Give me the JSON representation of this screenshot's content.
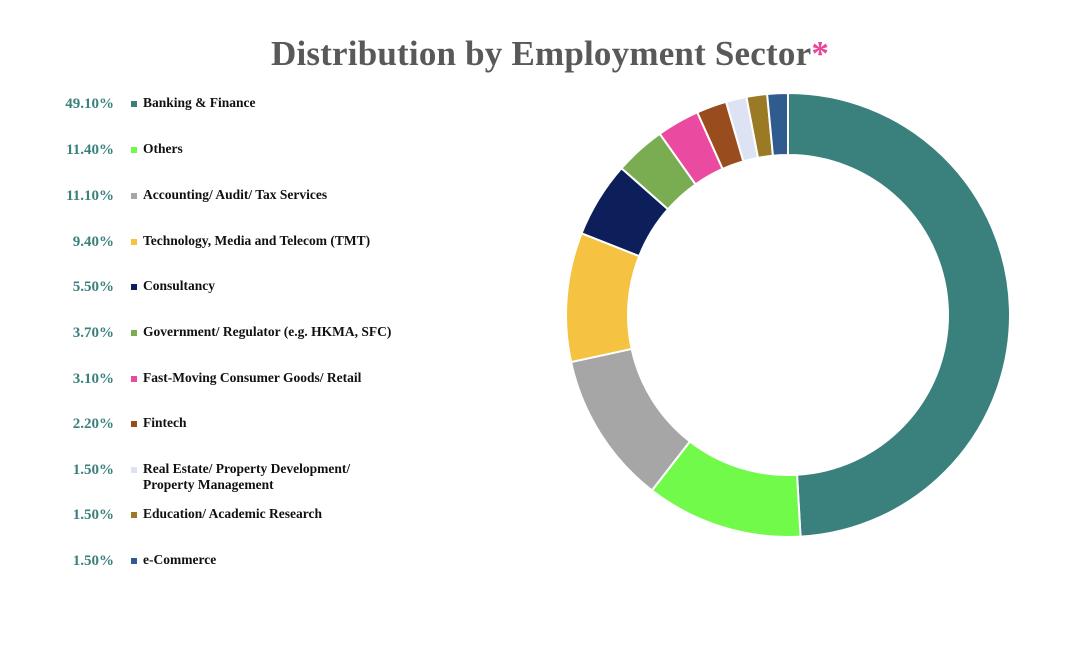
{
  "title": "Distribution by Employment Sector",
  "title_mark": "*",
  "chart_data": {
    "type": "pie",
    "variant": "donut",
    "title": "Distribution by Employment Sector*",
    "legend_position": "left",
    "slices": [
      {
        "label": "Banking & Finance",
        "value": 49.1,
        "display": "49.10%",
        "color": "#3a807c"
      },
      {
        "label": "Others",
        "value": 11.4,
        "display": "11.40%",
        "color": "#72fa4a"
      },
      {
        "label": "Accounting/ Audit/ Tax Services",
        "value": 11.1,
        "display": "11.10%",
        "color": "#a6a6a6"
      },
      {
        "label": "Technology, Media and Telecom (TMT)",
        "value": 9.4,
        "display": "9.40%",
        "color": "#f5c242"
      },
      {
        "label": "Consultancy",
        "value": 5.5,
        "display": "5.50%",
        "color": "#0c1f5b"
      },
      {
        "label": "Government/ Regulator (e.g. HKMA, SFC)",
        "value": 3.7,
        "display": "3.70%",
        "color": "#7aac52"
      },
      {
        "label": "Fast-Moving Consumer Goods/ Retail",
        "value": 3.1,
        "display": "3.10%",
        "color": "#ea4aa0"
      },
      {
        "label": "Fintech",
        "value": 2.2,
        "display": "2.20%",
        "color": "#994c1d"
      },
      {
        "label": "Real Estate/ Property Development/ Property Management",
        "value": 1.5,
        "display": "1.50%",
        "color": "#dde3f2"
      },
      {
        "label": "Education/ Academic Research",
        "value": 1.5,
        "display": "1.50%",
        "color": "#9a7a25"
      },
      {
        "label": "e-Commerce",
        "value": 1.5,
        "display": "1.50%",
        "color": "#2f5b8f"
      }
    ]
  }
}
